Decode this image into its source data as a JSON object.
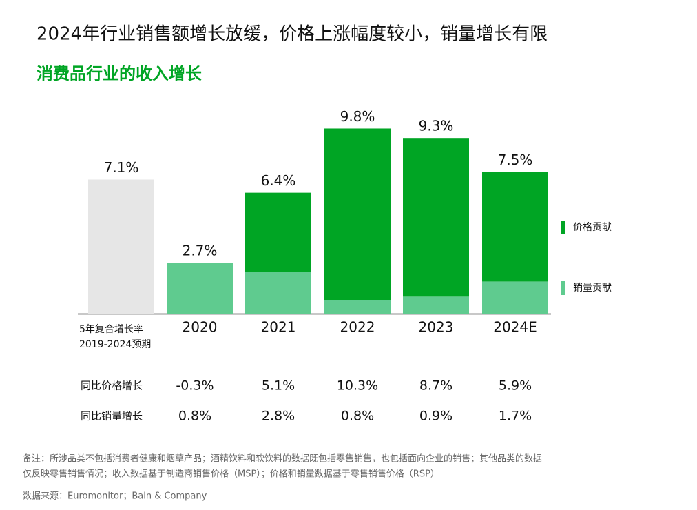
{
  "chart_data": {
    "type": "bar",
    "title": "2024年行业销售额增长放缓，价格上涨幅度较小，销量增长有限",
    "subtitle": "消费品行业的收入增长",
    "categories": [
      [
        "5年复合增长率",
        "2019-2024预期"
      ],
      "2020",
      "2021",
      "2022",
      "2023",
      "2024E"
    ],
    "totals": [
      7.1,
      2.7,
      6.4,
      9.8,
      9.3,
      7.5
    ],
    "total_labels": [
      "7.1%",
      "2.7%",
      "6.4%",
      "9.8%",
      "9.3%",
      "7.5%"
    ],
    "total_color": "#e6e6e6",
    "series": [
      {
        "name": "销量贡献",
        "color": "#5fcb8f",
        "values": [
          null,
          2.7,
          2.2,
          0.7,
          0.9,
          1.7
        ]
      },
      {
        "name": "价格贡献",
        "color": "#00a524",
        "values": [
          null,
          null,
          4.2,
          9.1,
          8.4,
          5.8
        ]
      }
    ],
    "table": {
      "rows": [
        {
          "label": "同比价格增长",
          "cells": [
            "-0.3%",
            "5.1%",
            "10.3%",
            "8.7%",
            "5.9%"
          ]
        },
        {
          "label": "同比销量增长",
          "cells": [
            "0.8%",
            "2.8%",
            "0.8%",
            "0.9%",
            "1.7%"
          ]
        }
      ]
    },
    "note": [
      "备注：所涉品类不包括消费者健康和烟草产品；酒精饮料和软饮料的数据既包括零售销售，也包括面向企业的销售；其他品类的数据",
      "仅反映零售销售情况；收入数据基于制造商销售价格（MSP）；价格和销量数据基于零售销售价格（RSP）"
    ],
    "source": "数据来源：Euromonitor；Bain & Company"
  }
}
